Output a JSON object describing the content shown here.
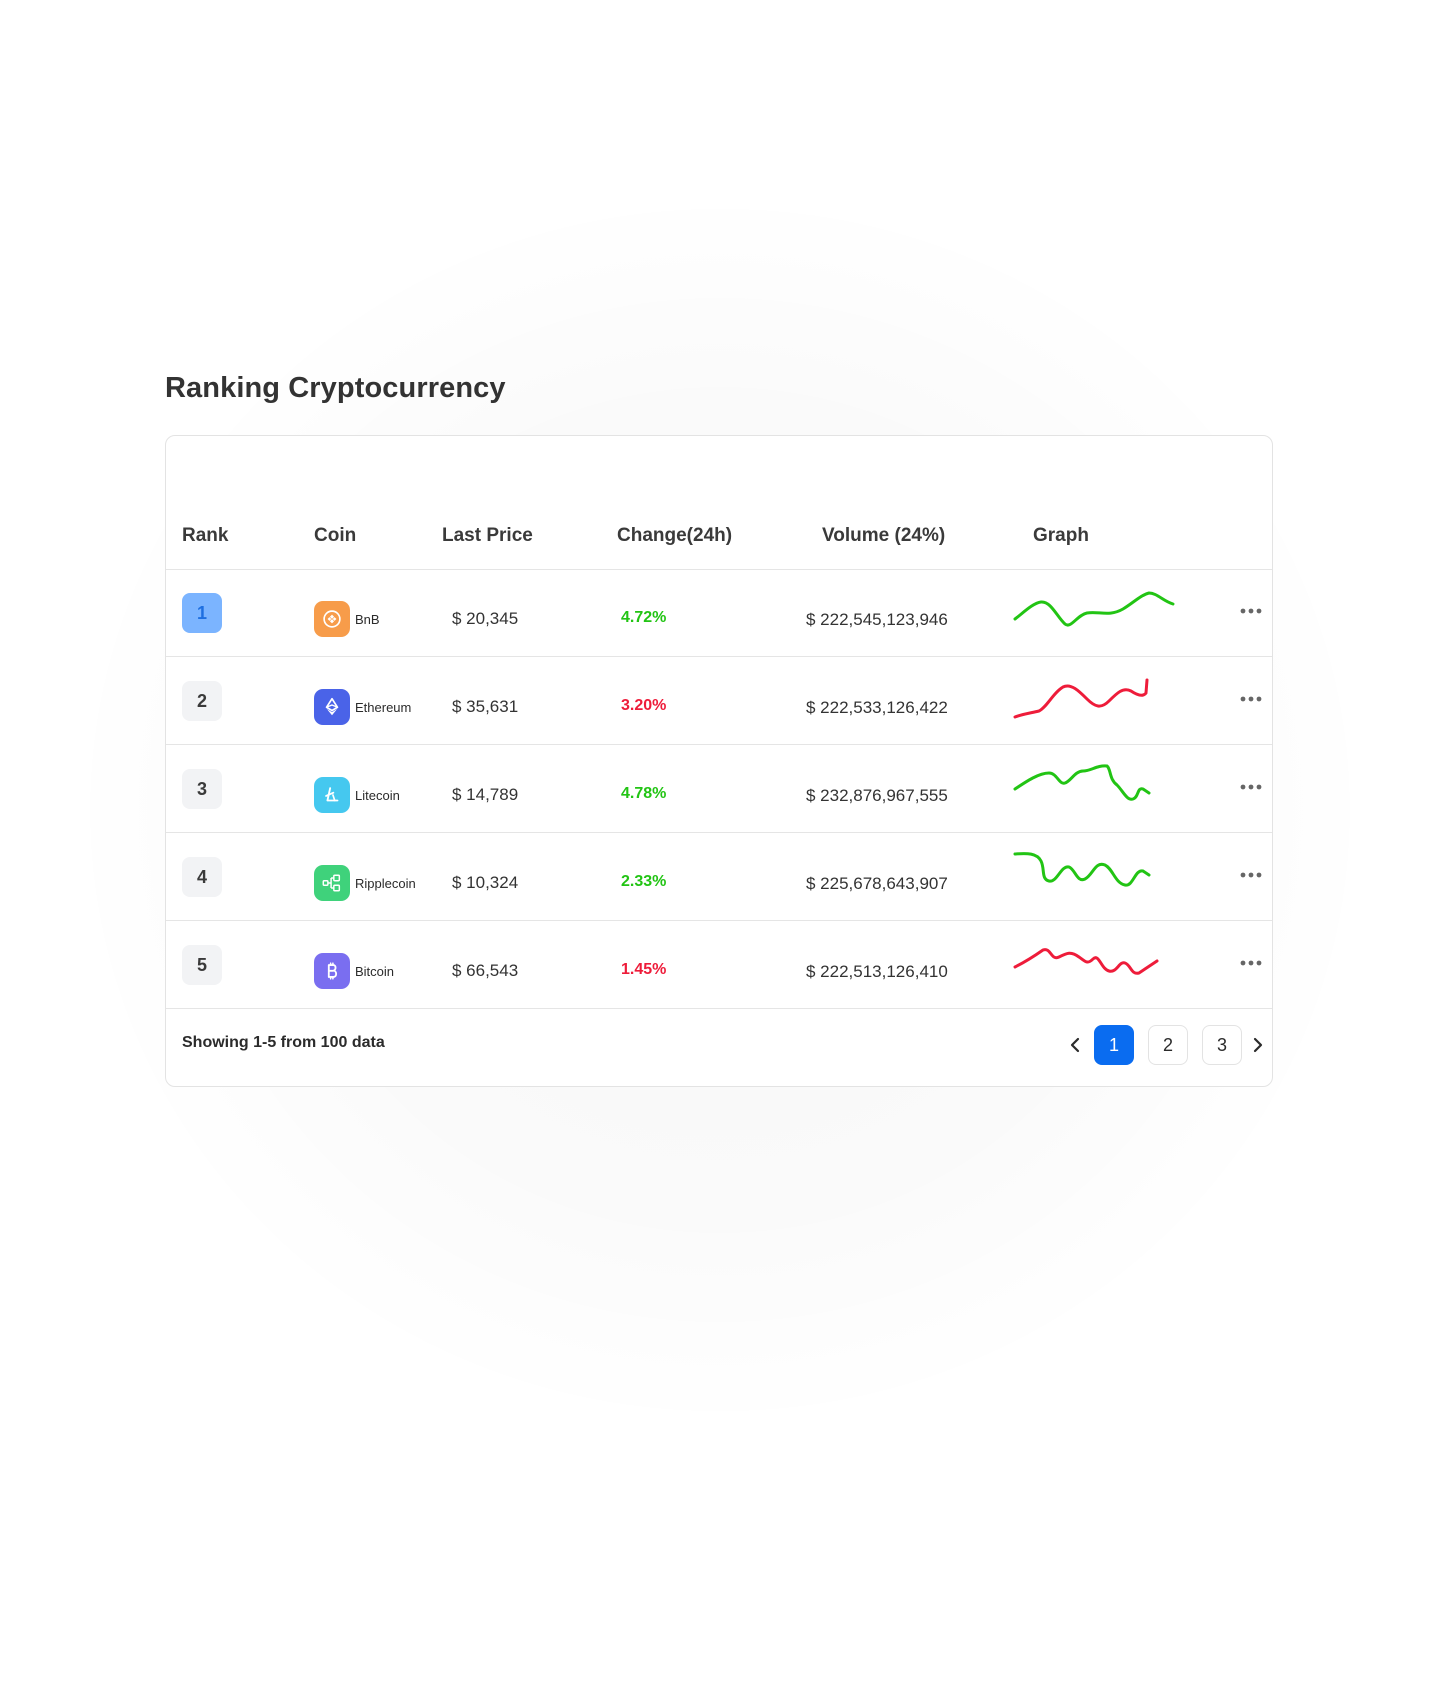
{
  "title": "Ranking Cryptocurrency",
  "columns": {
    "rank": "Rank",
    "coin": "Coin",
    "last_price": "Last Price",
    "change": "Change(24h)",
    "volume": "Volume (24%)",
    "graph": "Graph"
  },
  "rows": [
    {
      "rank": "1",
      "coin": "BnB",
      "price": "$ 20,345",
      "change": "4.72%",
      "volume": "$ 222,545,123,946",
      "icon": "bnb-icon",
      "icon_color": "#f79c4a",
      "trend": "up",
      "active": true
    },
    {
      "rank": "2",
      "coin": "Ethereum",
      "price": "$ 35,631",
      "change": "3.20%",
      "volume": "$ 222,533,126,422",
      "icon": "ethereum-icon",
      "icon_color": "#4a63e8",
      "trend": "down",
      "active": false
    },
    {
      "rank": "3",
      "coin": "Litecoin",
      "price": "$ 14,789",
      "change": "4.78%",
      "volume": "$ 232,876,967,555",
      "icon": "litecoin-icon",
      "icon_color": "#45c8ef",
      "trend": "up",
      "active": false
    },
    {
      "rank": "4",
      "coin": "Ripplecoin",
      "price": "$ 10,324",
      "change": "2.33%",
      "volume": "$ 225,678,643,907",
      "icon": "ripple-icon",
      "icon_color": "#3fd27b",
      "trend": "up",
      "active": false
    },
    {
      "rank": "5",
      "coin": "Bitcoin",
      "price": "$ 66,543",
      "change": "1.45%",
      "volume": "$ 222,513,126,410",
      "icon": "bitcoin-icon",
      "icon_color": "#7a6ef0",
      "trend": "down",
      "active": false
    }
  ],
  "footer": {
    "showing": "Showing 1-5 from 100 data",
    "prev": "<",
    "next": ">",
    "pages": [
      "1",
      "2",
      "3"
    ],
    "current_page": "1"
  },
  "colors": {
    "up": "#22c414",
    "down": "#ee1c3a",
    "accent": "#0a6cf0",
    "rank_active_bg": "#7bb4ff"
  }
}
